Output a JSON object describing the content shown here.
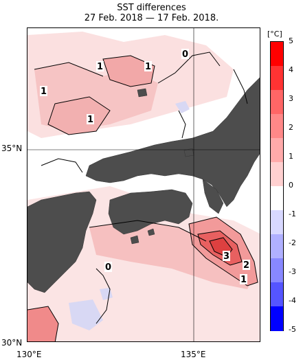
{
  "title": "SST differences",
  "subtitle": "27 Feb. 2018 — 17 Feb. 2018.",
  "axes": {
    "lat_labels": [
      "35°N",
      "30°N"
    ],
    "lon_labels": [
      "130°E",
      "135°E"
    ]
  },
  "contour_labels": [
    "1",
    "1",
    "1",
    "1",
    "0",
    "0",
    "3",
    "2",
    "1"
  ],
  "colorbar": {
    "unit": "[°C]",
    "ticks": [
      "5",
      "4",
      "3",
      "2",
      "1",
      "0",
      "-1",
      "-2",
      "-3",
      "-4",
      "-5"
    ],
    "colors": [
      "#ff0000",
      "#ff3333",
      "#ff6666",
      "#ff8888",
      "#ffaaaa",
      "#ffd0d0",
      "#ffffff",
      "#d8d8ff",
      "#b0b0ff",
      "#8888ff",
      "#5555ff",
      "#0000ff"
    ]
  },
  "colors": {
    "land": "#4d4d4d",
    "positive": "#f4b4b4",
    "strong_positive": "#e06060",
    "negative": "#c8c8f0"
  }
}
